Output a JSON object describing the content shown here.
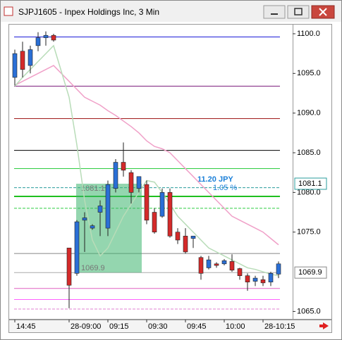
{
  "chart_data": {
    "type": "candlestick",
    "title": "SJPJ1605 - Inpex Holdings Inc, 3 Min",
    "categories": [
      "14:45",
      null,
      null,
      null,
      null,
      null,
      "28-09:00",
      null,
      null,
      null,
      null,
      "09:15",
      null,
      null,
      null,
      null,
      "09:30",
      null,
      null,
      null,
      null,
      "09:45",
      null,
      null,
      null,
      null,
      "10:00",
      null,
      null,
      null,
      null,
      "28-10:15",
      null,
      null
    ],
    "open": [
      1094.5,
      1097.8,
      1096,
      1098.5,
      1099.5,
      1099.8,
      1073,
      1069.8,
      1076.5,
      1075.5,
      1077.5,
      1075.5,
      1080.5,
      1083.8,
      1082.5,
      1080.5,
      1081,
      1077.5,
      1077,
      1080,
      1075,
      1074.5,
      1074.2,
      1071.8,
      1070.5,
      1071,
      1071,
      1071.3,
      1070.4,
      1069.5,
      1068.8,
      1069,
      1068.7,
      1069.7
    ],
    "high": [
      1098,
      1099,
      1098.5,
      1100.2,
      1100.3,
      1100,
      1073,
      1076.5,
      1077.5,
      1076,
      1079,
      1081.5,
      1084.2,
      1086.3,
      1082.8,
      1082,
      1081.5,
      1078,
      1080.5,
      1080.5,
      1075.5,
      1075.5,
      1074.5,
      1072,
      1072,
      1071.2,
      1071.6,
      1072.2,
      1070.5,
      1069.8,
      1069.5,
      1069.5,
      1070,
      1071.3
    ],
    "low": [
      1093.5,
      1094.5,
      1095,
      1097.8,
      1098.5,
      1099,
      1065.4,
      1069.5,
      1072.5,
      1075.3,
      1074.5,
      1074.5,
      1080,
      1082,
      1078.6,
      1080,
      1076,
      1074.8,
      1076.8,
      1074.3,
      1073.5,
      1072.3,
      1073,
      1069,
      1070.3,
      1070.5,
      1070.8,
      1070,
      1069,
      1067.6,
      1068.2,
      1068.2,
      1068.2,
      1069.2
    ],
    "close": [
      1097.5,
      1095.5,
      1098,
      1099.5,
      1099.8,
      1099.2,
      1068.3,
      1076.3,
      1076.8,
      1075.8,
      1078.3,
      1081,
      1083.8,
      1082.8,
      1080,
      1082,
      1076.5,
      1075,
      1080,
      1074.5,
      1074,
      1072.5,
      1074.5,
      1069.8,
      1071.5,
      1070.8,
      1071.4,
      1070.2,
      1069.5,
      1068.7,
      1069.2,
      1068.6,
      1069.8,
      1071
    ],
    "up_color": "#2a6fd6",
    "down_color": "#d42a2a",
    "moving_averages": [
      {
        "color": "#f0a0c8",
        "values": [
          1093.5,
          1094,
          1094.5,
          1095,
          1095.5,
          1096,
          1094,
          1093,
          1092,
          1091.5,
          1091,
          1090.3,
          1089.7,
          1089,
          1088.3,
          1087.5,
          1086.5,
          1085.8,
          1085.5,
          1085,
          1084,
          1083,
          1082,
          1081,
          1080,
          1079,
          1078,
          1077,
          1076.5,
          1076,
          1075.5,
          1075,
          1074.2,
          1073.4
        ]
      },
      {
        "color": "#b8dcb8",
        "values": [
          1093.4,
          1094.5,
          1095.5,
          1096.5,
          1097.5,
          1098.5,
          1092,
          1086,
          1079,
          1074,
          1072,
          1073,
          1075,
          1077,
          1078.5,
          1080,
          1081.5,
          1081.3,
          1080,
          1078.5,
          1077,
          1076,
          1075,
          1074,
          1073,
          1072.5,
          1072,
          1071.5,
          1071,
          1070.5,
          1070.3,
          1070,
          1069.7,
          1069.5
        ]
      }
    ],
    "levels": [
      {
        "value": 1099.6,
        "color": "#1a1ad8",
        "style": "solid"
      },
      {
        "value": 1093.4,
        "color": "#7a1a7a",
        "style": "solid"
      },
      {
        "value": 1089.3,
        "color": "#a01a1a",
        "style": "solid"
      },
      {
        "value": 1085.3,
        "color": "#000000",
        "style": "solid"
      },
      {
        "value": 1083,
        "color": "#2ecc40",
        "style": "solid"
      },
      {
        "value": 1080.6,
        "color": "#2a9d9d",
        "style": "dashed"
      },
      {
        "value": 1079.5,
        "color": "#1fbf1f",
        "style": "thick"
      },
      {
        "value": 1078,
        "color": "#2ecc40",
        "style": "dashed"
      },
      {
        "value": 1072.3,
        "color": "#888888",
        "style": "solid"
      },
      {
        "value": 1069.9,
        "color": "#aaaaaa",
        "style": "solid"
      },
      {
        "value": 1067.9,
        "color": "#e060c0",
        "style": "solid"
      },
      {
        "value": 1066.5,
        "color": "#ff60ff",
        "style": "solid"
      },
      {
        "value": 1065.3,
        "color": "#e080d0",
        "style": "dashed"
      }
    ],
    "measure": {
      "high": 1081.1,
      "low": 1069.9,
      "change": "11.20 JPY",
      "percent": "1.05 %"
    },
    "last_price": 1069.9,
    "ylim": [
      1064.15,
      1101.15
    ],
    "yticks": [
      {
        "value": 1100,
        "label": "1100.0"
      },
      {
        "value": 1095,
        "label": "1095.0"
      },
      {
        "value": 1090,
        "label": "1090.0"
      },
      {
        "value": 1085,
        "label": "1085.0"
      },
      {
        "value": 1080,
        "label": "1080.0"
      },
      {
        "value": 1075,
        "label": "1075.0"
      },
      {
        "value": 1065,
        "label": "1065.0"
      }
    ]
  }
}
